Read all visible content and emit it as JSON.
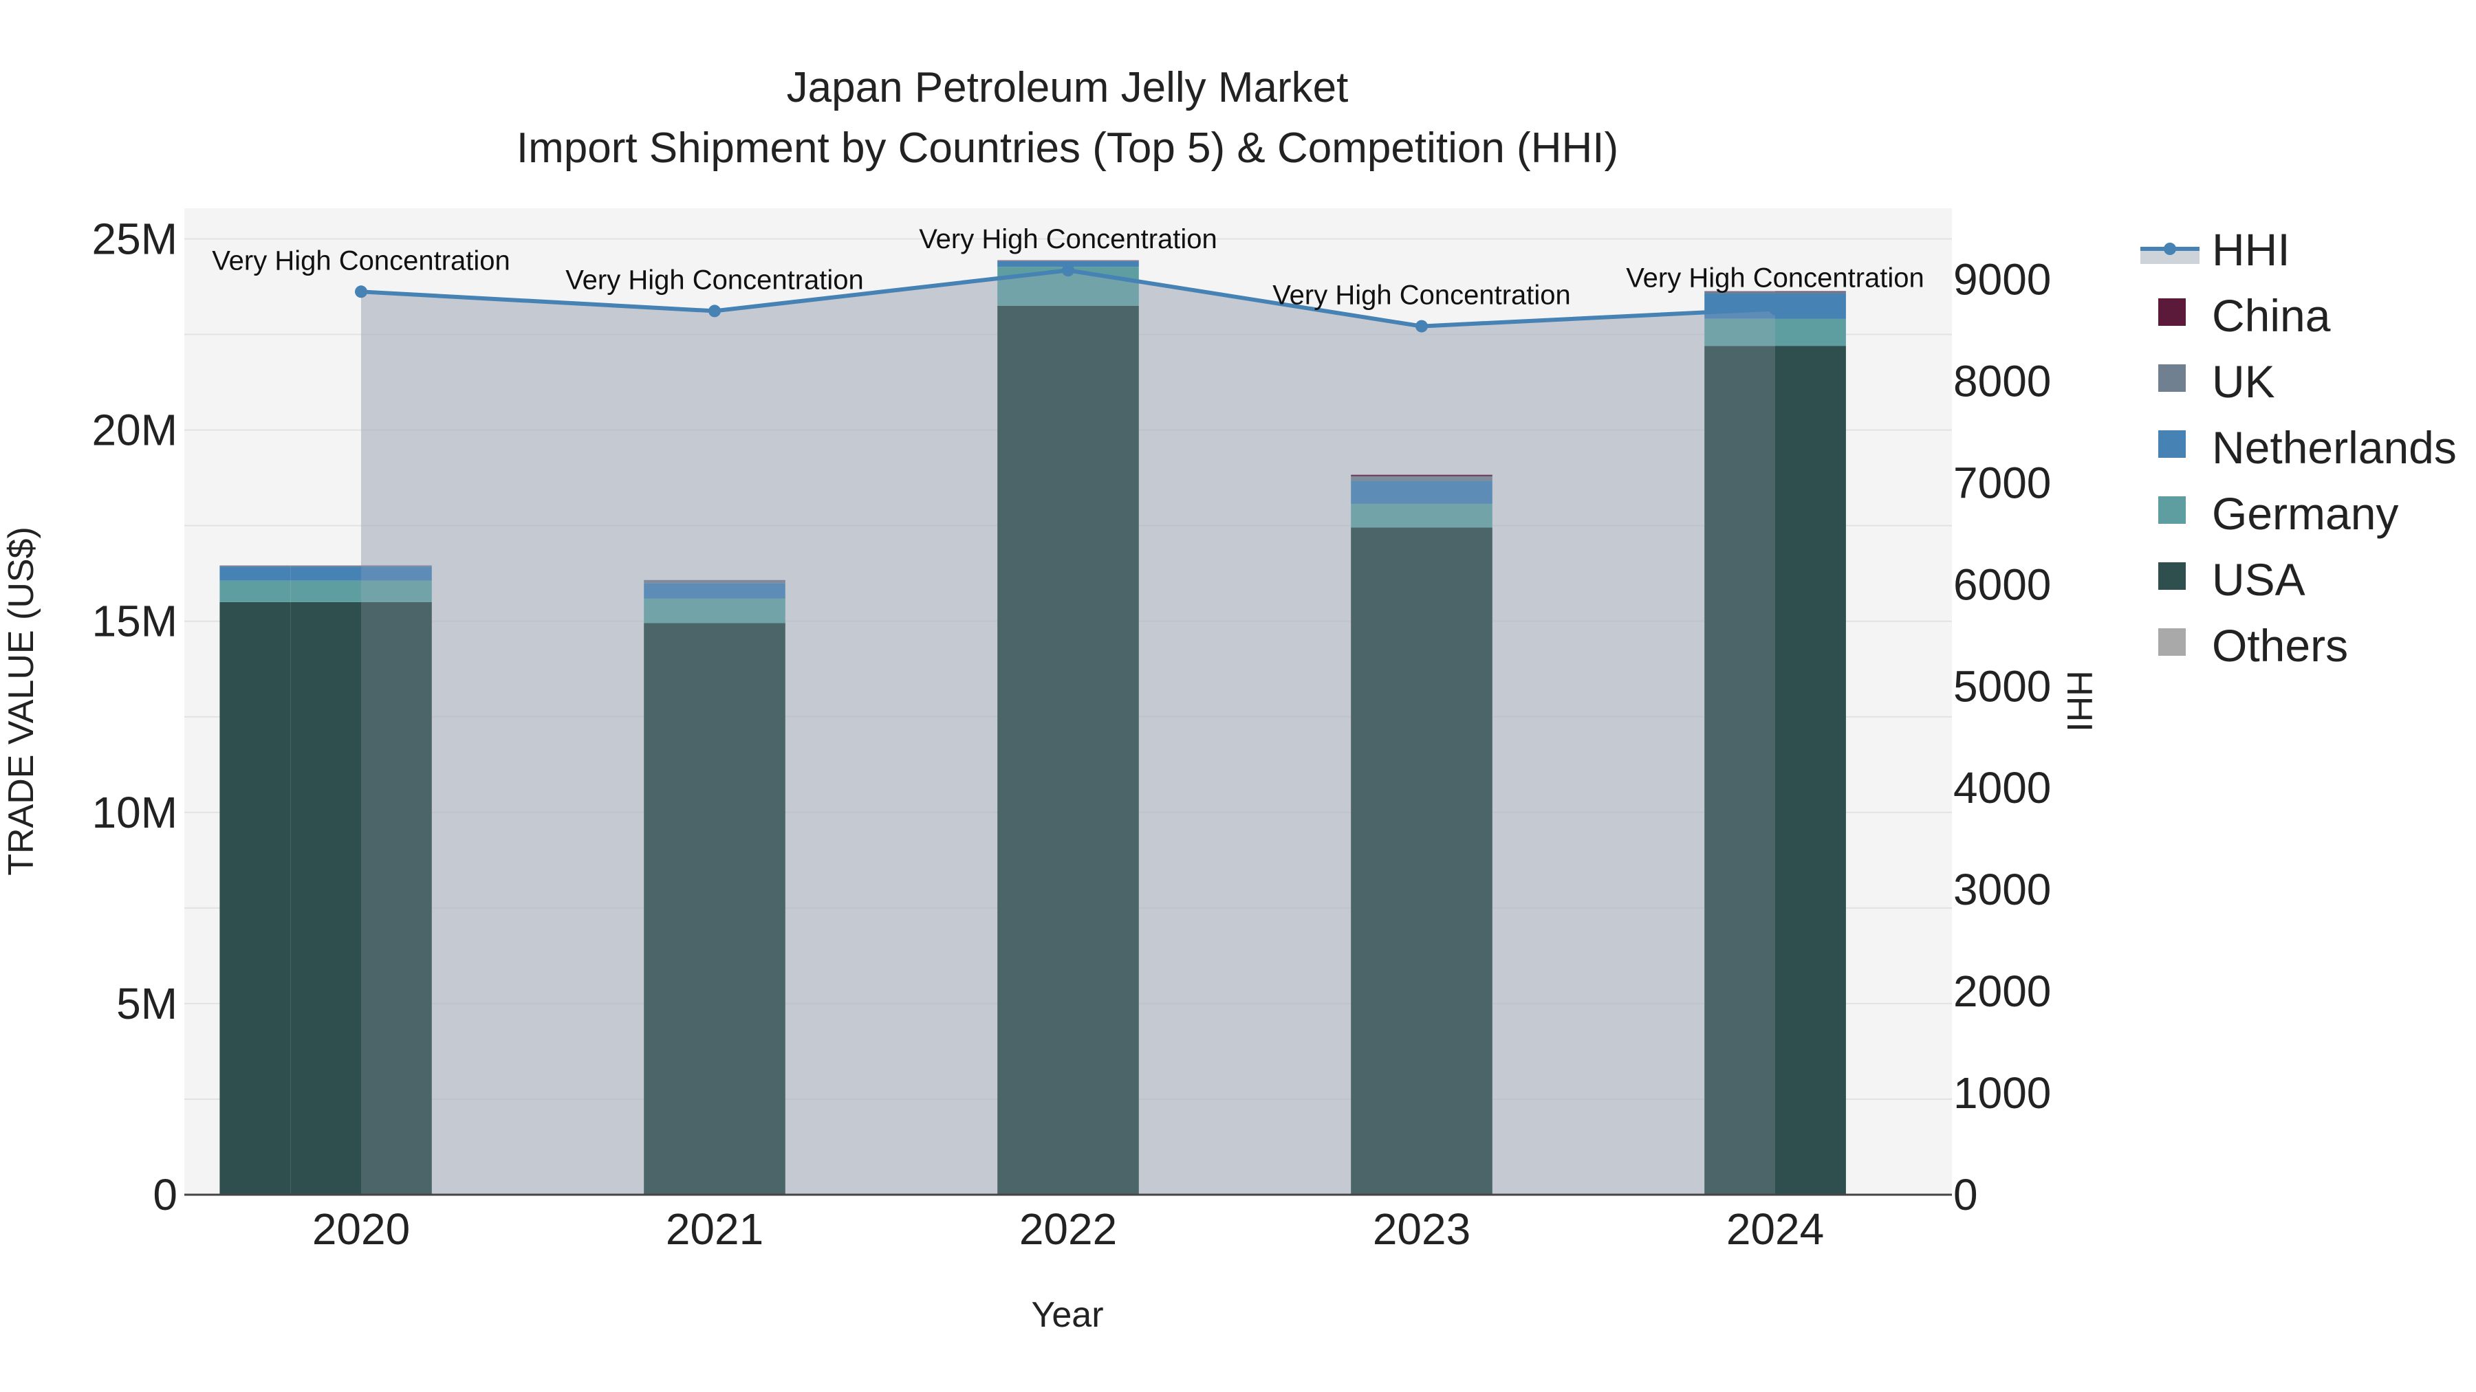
{
  "chart_data": {
    "type": "bar",
    "title": "Japan Petroleum Jelly Market",
    "subtitle": "Import Shipment by Countries (Top 5) & Competition (HHI)",
    "xlabel": "Year",
    "ylabel": "TRADE VALUE (US$)",
    "y2label": "HHI",
    "categories": [
      "2020",
      "2021",
      "2022",
      "2023",
      "2024"
    ],
    "ylim": [
      0,
      25800000
    ],
    "y2lim": [
      0,
      9700
    ],
    "yticks": [
      0,
      5000000,
      10000000,
      15000000,
      20000000,
      25000000
    ],
    "ytick_labels": [
      "0",
      "5M",
      "10M",
      "15M",
      "20M",
      "25M"
    ],
    "y2ticks": [
      0,
      1000,
      2000,
      3000,
      4000,
      5000,
      6000,
      7000,
      8000,
      9000
    ],
    "y2tick_labels": [
      "0",
      "1000",
      "2000",
      "3000",
      "4000",
      "5000",
      "6000",
      "7000",
      "8000",
      "9000"
    ],
    "grid": true,
    "legend_position": "right",
    "series": [
      {
        "name": "USA",
        "color": "#2f4f4f",
        "values": [
          15500000,
          14950000,
          23250000,
          17450000,
          22200000
        ],
        "secondary_values": [
          15500000,
          null,
          null,
          null,
          22200000
        ]
      },
      {
        "name": "Germany",
        "color": "#5f9ea0",
        "values": [
          560000,
          640000,
          1020000,
          620000,
          710000
        ],
        "secondary_values": [
          560000,
          null,
          null,
          null,
          710000
        ]
      },
      {
        "name": "Netherlands",
        "color": "#4682b4",
        "values": [
          370000,
          400000,
          150000,
          600000,
          660000
        ],
        "secondary_values": [
          370000,
          null,
          null,
          null,
          660000
        ]
      },
      {
        "name": "UK",
        "color": "#708090",
        "values": [
          20000,
          80000,
          10000,
          120000,
          50000
        ],
        "secondary_values": [
          20000,
          null,
          null,
          null,
          50000
        ]
      },
      {
        "name": "China",
        "color": "#5c1a3a",
        "values": [
          5000,
          5000,
          10000,
          40000,
          10000
        ],
        "secondary_values": [
          5000,
          null,
          null,
          null,
          10000
        ]
      },
      {
        "name": "Others",
        "color": "#a9a9a9",
        "values": [
          0,
          0,
          0,
          0,
          0
        ]
      }
    ],
    "hhi": {
      "name": "HHI",
      "color": "#4682b4",
      "values": [
        8880,
        8690,
        9090,
        8540,
        8710
      ],
      "annotations": [
        "Very High Concentration",
        "Very High Concentration",
        "Very High Concentration",
        "Very High Concentration",
        "Very High Concentration"
      ]
    },
    "legend_order": [
      "HHI",
      "China",
      "UK",
      "Netherlands",
      "Germany",
      "USA",
      "Others"
    ]
  }
}
